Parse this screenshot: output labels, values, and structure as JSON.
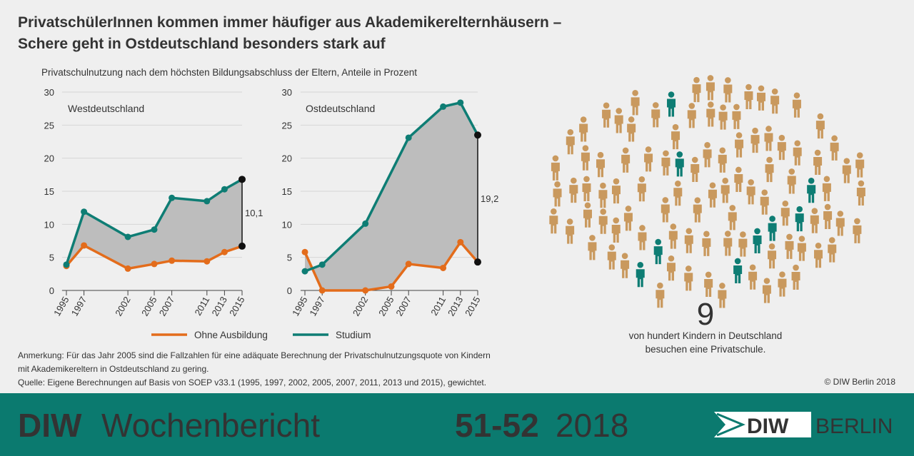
{
  "title_lines": [
    "PrivatschülerInnen kommen immer häufiger aus Akademikerelternhäusern –",
    "Schere geht in Ostdeutschland besonders stark auf"
  ],
  "subtitle": "Privatschulnutzung nach dem höchsten Bildungsabschluss der Eltern, Anteile in Prozent",
  "chart_data": [
    {
      "type": "line",
      "title": "Westdeutschland",
      "x": [
        1995,
        1997,
        2002,
        2005,
        2007,
        2011,
        2013,
        2015
      ],
      "xlim": [
        1994.5,
        2015
      ],
      "xticks": [
        1995,
        1997,
        2002,
        2005,
        2007,
        2011,
        2013,
        2015
      ],
      "ylim": [
        0,
        30
      ],
      "yticks": [
        0,
        5,
        10,
        15,
        20,
        25,
        30
      ],
      "grid": true,
      "series": [
        {
          "name": "Ohne Ausbildung",
          "color": "#e36c1b",
          "values": [
            3.7,
            6.8,
            3.3,
            4.0,
            4.5,
            4.4,
            5.8,
            6.7
          ]
        },
        {
          "name": "Studium",
          "color": "#0e7d74",
          "values": [
            3.9,
            11.9,
            8.1,
            9.2,
            14.0,
            13.5,
            15.3,
            16.8
          ]
        }
      ],
      "annotation": "10,1"
    },
    {
      "type": "line",
      "title": "Ostdeutschland",
      "x": [
        1995,
        1997,
        2002,
        2005,
        2007,
        2011,
        2013,
        2015
      ],
      "xlim": [
        1994.5,
        2015
      ],
      "xticks": [
        1995,
        1997,
        2002,
        2005,
        2007,
        2011,
        2013,
        2015
      ],
      "ylim": [
        0,
        30
      ],
      "yticks": [
        0,
        5,
        10,
        15,
        20,
        25,
        30
      ],
      "grid": true,
      "series": [
        {
          "color": "#e36c1b",
          "values": [
            5.8,
            0.0,
            0.0,
            0.6,
            4.0,
            3.4,
            7.3,
            4.3
          ]
        },
        {
          "color": "#0e7d74",
          "x": [
            1995,
            1997,
            2002,
            2007,
            2011,
            2013,
            2015
          ],
          "values": [
            2.9,
            3.9,
            10.1,
            23.1,
            27.8,
            28.4,
            23.5
          ]
        }
      ],
      "annotation": "19,2"
    }
  ],
  "pictogram": {
    "value": 9,
    "total": 100,
    "color": "#c9995e",
    "highlight_color": "#0e7d74",
    "caption": "von hundert Kindern in Deutschland",
    "caption2": "besuchen eine Privatschule."
  },
  "notes": [
    "Anmerkung: Für das Jahr 2005 sind die Fallzahlen für eine adäquate Berechnung der Privatschulnutzungsquote von Kindern",
    "mit Akademikereltern in Ostdeutschland zu gering.",
    "Quelle: Eigene Berechnungen auf Basis von SOEP v33.1 (1995, 1997, 2002, 2005, 2007, 2011, 2013 und 2015), gewichtet."
  ],
  "copyright": "© DIW Berlin 2018",
  "footer": {
    "brand": "DIW",
    "publication": "Wochenbericht",
    "issue": "51-52",
    "year": "2018",
    "logo_left": "DIW",
    "logo_right": "BERLIN"
  }
}
